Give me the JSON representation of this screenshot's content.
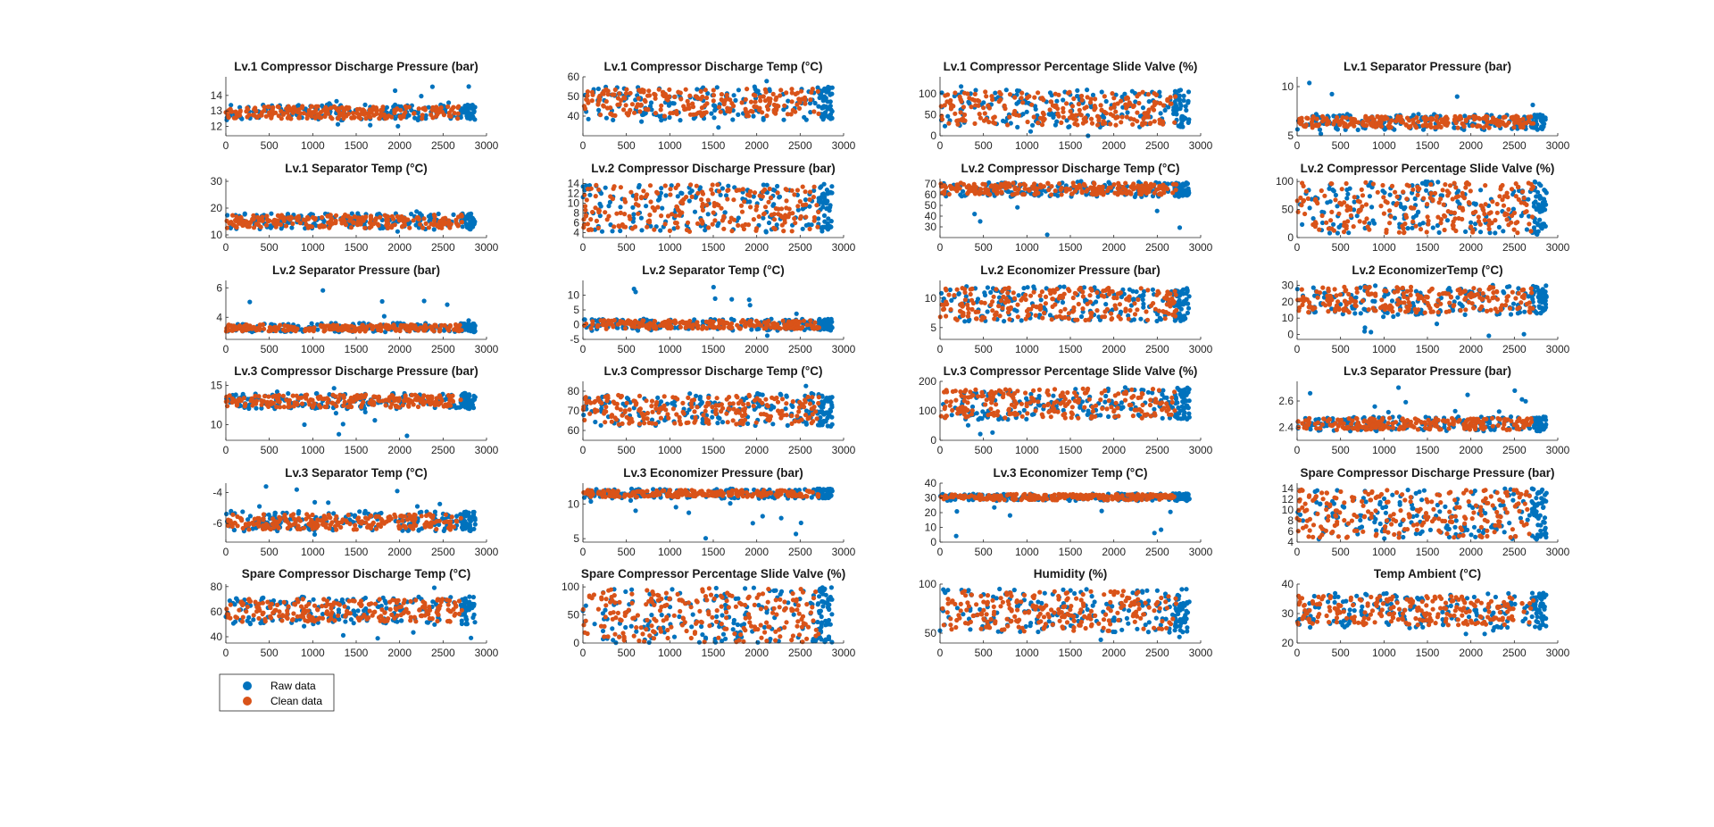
{
  "colors": {
    "raw": "#0072BD",
    "clean": "#D95319",
    "axis": "#262626"
  },
  "legend": {
    "raw_label": "Raw data",
    "clean_label": "Clean data"
  },
  "chart_data": [
    {
      "type": "scatter",
      "title": "Lv.1 Compressor Discharge Pressure (bar)",
      "xlim": [
        0,
        3000
      ],
      "ylim": [
        11.4,
        15.2
      ],
      "yticks": [
        12,
        13,
        14
      ],
      "raw": {
        "min": 11.8,
        "max": 14.7,
        "ymin": 12.4,
        "ymax": 13.4
      },
      "clean": {
        "ymin": 12.5,
        "ymax": 13.3
      }
    },
    {
      "type": "scatter",
      "title": "Lv.1 Compressor Discharge Temp (°C)",
      "xlim": [
        0,
        3000
      ],
      "ylim": [
        30,
        60
      ],
      "yticks": [
        40,
        50,
        60
      ],
      "raw": {
        "min": 31,
        "max": 58,
        "ymin": 38,
        "ymax": 55
      },
      "clean": {
        "ymin": 40,
        "ymax": 54
      }
    },
    {
      "type": "scatter",
      "title": "Lv.1 Compressor Percentage Slide Valve (%)",
      "xlim": [
        0,
        3000
      ],
      "ylim": [
        0,
        140
      ],
      "yticks": [
        0,
        50,
        100
      ],
      "raw": {
        "min": 0,
        "max": 135,
        "ymin": 20,
        "ymax": 110
      },
      "clean": {
        "ymin": 25,
        "ymax": 105
      }
    },
    {
      "type": "scatter",
      "title": "Lv.1 Separator Pressure (bar)",
      "xlim": [
        0,
        3000
      ],
      "ylim": [
        5,
        11
      ],
      "yticks": [
        5,
        10
      ],
      "raw": {
        "min": 5.1,
        "max": 10.6,
        "ymin": 5.6,
        "ymax": 7.2
      },
      "clean": {
        "ymin": 5.8,
        "ymax": 7.0
      }
    },
    {
      "type": "scatter",
      "title": "Lv.1 Separator Temp (°C)",
      "xlim": [
        0,
        3000
      ],
      "ylim": [
        9,
        31
      ],
      "yticks": [
        10,
        20,
        30
      ],
      "raw": {
        "min": 9.5,
        "max": 29,
        "ymin": 12,
        "ymax": 18
      },
      "clean": {
        "ymin": 12.5,
        "ymax": 17.5
      }
    },
    {
      "type": "scatter",
      "title": "Lv.2 Compressor Discharge Pressure (bar)",
      "xlim": [
        0,
        3000
      ],
      "ylim": [
        3,
        15
      ],
      "yticks": [
        4,
        6,
        8,
        10,
        12,
        14
      ],
      "raw": {
        "min": 3.5,
        "max": 14.5,
        "ymin": 4,
        "ymax": 14
      },
      "clean": {
        "ymin": 4.2,
        "ymax": 13.8
      }
    },
    {
      "type": "scatter",
      "title": "Lv.2 Compressor Discharge Temp (°C)",
      "xlim": [
        0,
        3000
      ],
      "ylim": [
        20,
        75
      ],
      "yticks": [
        30,
        40,
        50,
        60,
        70
      ],
      "raw": {
        "min": 22,
        "max": 74,
        "ymin": 58,
        "ymax": 72
      },
      "clean": {
        "ymin": 60,
        "ymax": 71
      }
    },
    {
      "type": "scatter",
      "title": "Lv.2 Compressor Percentage Slide Valve (%)",
      "xlim": [
        0,
        3000
      ],
      "ylim": [
        0,
        105
      ],
      "yticks": [
        0,
        50,
        100
      ],
      "raw": {
        "min": 0,
        "max": 100,
        "ymin": 5,
        "ymax": 100
      },
      "clean": {
        "ymin": 8,
        "ymax": 98
      }
    },
    {
      "type": "scatter",
      "title": "Lv.2 Separator Pressure (bar)",
      "xlim": [
        0,
        3000
      ],
      "ylim": [
        2.5,
        6.5
      ],
      "yticks": [
        4,
        6
      ],
      "raw": {
        "min": 2.8,
        "max": 6.2,
        "ymin": 3.0,
        "ymax": 3.6
      },
      "clean": {
        "ymin": 3.05,
        "ymax": 3.5
      }
    },
    {
      "type": "scatter",
      "title": "Lv.2 Separator Temp (°C)",
      "xlim": [
        0,
        3000
      ],
      "ylim": [
        -5,
        15
      ],
      "yticks": [
        -5,
        0,
        5,
        10
      ],
      "raw": {
        "min": -4,
        "max": 13,
        "ymin": -2,
        "ymax": 2
      },
      "clean": {
        "ymin": -1.5,
        "ymax": 1.5
      }
    },
    {
      "type": "scatter",
      "title": "Lv.2 Economizer Pressure (bar)",
      "xlim": [
        0,
        3000
      ],
      "ylim": [
        3,
        13
      ],
      "yticks": [
        5,
        10
      ],
      "raw": {
        "min": 3.5,
        "max": 12.5,
        "ymin": 6,
        "ymax": 12
      },
      "clean": {
        "ymin": 6.2,
        "ymax": 11.8
      }
    },
    {
      "type": "scatter",
      "title": "Lv.2 EconomizerTemp (°C)",
      "xlim": [
        0,
        3000
      ],
      "ylim": [
        -3,
        33
      ],
      "yticks": [
        0,
        10,
        20,
        30
      ],
      "raw": {
        "min": -2,
        "max": 32,
        "ymin": 12,
        "ymax": 30
      },
      "clean": {
        "ymin": 13,
        "ymax": 29
      }
    },
    {
      "type": "scatter",
      "title": "Lv.3 Compressor Discharge Pressure (bar)",
      "xlim": [
        0,
        3000
      ],
      "ylim": [
        8,
        15.5
      ],
      "yticks": [
        10,
        15
      ],
      "raw": {
        "min": 8.5,
        "max": 15,
        "ymin": 12,
        "ymax": 14
      },
      "clean": {
        "ymin": 12.2,
        "ymax": 13.8
      }
    },
    {
      "type": "scatter",
      "title": "Lv.3 Compressor Discharge Temp (°C)",
      "xlim": [
        0,
        3000
      ],
      "ylim": [
        55,
        85
      ],
      "yticks": [
        60,
        70,
        80
      ],
      "raw": {
        "min": 56,
        "max": 83,
        "ymin": 62,
        "ymax": 79
      },
      "clean": {
        "ymin": 63,
        "ymax": 78
      }
    },
    {
      "type": "scatter",
      "title": "Lv.3 Compressor Percentage Slide Valve (%)",
      "xlim": [
        0,
        3000
      ],
      "ylim": [
        0,
        200
      ],
      "yticks": [
        0,
        100,
        200
      ],
      "raw": {
        "min": 0,
        "max": 200,
        "ymin": 70,
        "ymax": 180
      },
      "clean": {
        "ymin": 75,
        "ymax": 175
      }
    },
    {
      "type": "scatter",
      "title": "Lv.3 Separator Pressure (bar)",
      "xlim": [
        0,
        3000
      ],
      "ylim": [
        2.3,
        2.75
      ],
      "yticks": [
        2.4,
        2.6
      ],
      "raw": {
        "min": 2.33,
        "max": 2.72,
        "ymin": 2.37,
        "ymax": 2.48
      },
      "clean": {
        "ymin": 2.38,
        "ymax": 2.47
      }
    },
    {
      "type": "scatter",
      "title": "Lv.3 Separator Temp (°C)",
      "xlim": [
        0,
        3000
      ],
      "ylim": [
        -7.2,
        -3.4
      ],
      "yticks": [
        -6,
        -4
      ],
      "raw": {
        "min": -7,
        "max": -3.6,
        "ymin": -6.5,
        "ymax": -5.2
      },
      "clean": {
        "ymin": -6.4,
        "ymax": -5.4
      }
    },
    {
      "type": "scatter",
      "title": "Lv.3 Economizer Pressure (bar)",
      "xlim": [
        0,
        3000
      ],
      "ylim": [
        4.5,
        13
      ],
      "yticks": [
        5,
        10
      ],
      "raw": {
        "min": 4.8,
        "max": 12.8,
        "ymin": 10.8,
        "ymax": 12.2
      },
      "clean": {
        "ymin": 11,
        "ymax": 12
      }
    },
    {
      "type": "scatter",
      "title": "Lv.3 Economizer Temp (°C)",
      "xlim": [
        0,
        3000
      ],
      "ylim": [
        0,
        40
      ],
      "yticks": [
        0,
        10,
        20,
        30,
        40
      ],
      "raw": {
        "min": 1,
        "max": 36,
        "ymin": 28,
        "ymax": 33
      },
      "clean": {
        "ymin": 28.5,
        "ymax": 32.5
      }
    },
    {
      "type": "scatter",
      "title": "Spare Compressor Discharge Pressure (bar)",
      "xlim": [
        0,
        3000
      ],
      "ylim": [
        4,
        15
      ],
      "yticks": [
        4,
        6,
        8,
        10,
        12,
        14
      ],
      "raw": {
        "min": 4,
        "max": 14.5,
        "ymin": 4.5,
        "ymax": 14
      },
      "clean": {
        "ymin": 4.8,
        "ymax": 13.8
      }
    },
    {
      "type": "scatter",
      "title": "Spare Compressor Discharge Temp (°C)",
      "xlim": [
        0,
        3000
      ],
      "ylim": [
        35,
        82
      ],
      "yticks": [
        40,
        60,
        80
      ],
      "raw": {
        "min": 37,
        "max": 80,
        "ymin": 50,
        "ymax": 72
      },
      "clean": {
        "ymin": 52,
        "ymax": 70
      }
    },
    {
      "type": "scatter",
      "title": "Spare Compressor Percentage Slide Valve (%)",
      "xlim": [
        0,
        3000
      ],
      "ylim": [
        0,
        105
      ],
      "yticks": [
        0,
        50,
        100
      ],
      "raw": {
        "min": 0,
        "max": 100,
        "ymin": 0,
        "ymax": 100
      },
      "clean": {
        "ymin": 2,
        "ymax": 98
      }
    },
    {
      "type": "scatter",
      "title": "Humidity (%)",
      "xlim": [
        0,
        3000
      ],
      "ylim": [
        40,
        100
      ],
      "yticks": [
        50,
        100
      ],
      "raw": {
        "min": 40,
        "max": 98,
        "ymin": 50,
        "ymax": 95
      },
      "clean": {
        "ymin": 52,
        "ymax": 93
      }
    },
    {
      "type": "scatter",
      "title": "Temp Ambient (°C)",
      "xlim": [
        0,
        3000
      ],
      "ylim": [
        20,
        40
      ],
      "yticks": [
        20,
        30,
        40
      ],
      "raw": {
        "min": 23,
        "max": 40,
        "ymin": 25,
        "ymax": 37
      },
      "clean": {
        "ymin": 26,
        "ymax": 36
      }
    }
  ]
}
